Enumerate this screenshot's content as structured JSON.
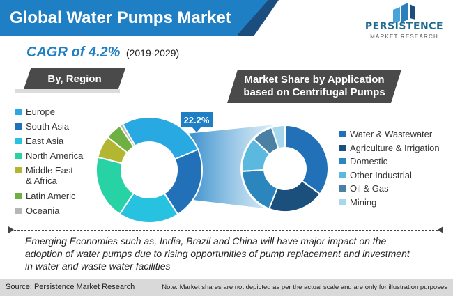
{
  "header": {
    "title": "Global Water Pumps Market",
    "cagr": "CAGR of 4.2%",
    "period": "(2019-2029)"
  },
  "logo": {
    "name": "PERSISTENCE",
    "tagline": "MARKET RESEARCH"
  },
  "colors": {
    "brand_blue": "#1f7fc4",
    "dark_blue": "#1b4d7e",
    "label_gray": "#4a4a4a"
  },
  "chart_data": [
    {
      "type": "pie",
      "donut": true,
      "title": "By, Region",
      "categories": [
        "Europe",
        "South Asia",
        "East Asia",
        "North America",
        "Middle East\n& Africa",
        "Latin Americ",
        "Oceania"
      ],
      "values": [
        27,
        22.2,
        18.5,
        19.5,
        6.8,
        5,
        1
      ],
      "colors": [
        "#29a9e1",
        "#2170b8",
        "#27c2e0",
        "#27d2a5",
        "#b3b631",
        "#6fb043",
        "#b7b7b7"
      ],
      "annotation": "22.2%",
      "legend": "left"
    },
    {
      "type": "pie",
      "donut": true,
      "title": "Market Share by Application\nbased on Centrifugal Pumps",
      "categories": [
        "Water & Wastewater",
        "Agriculture & Irrigation",
        "Domestic",
        "Other Industrial",
        "Oil & Gas",
        "Mining"
      ],
      "values": [
        35,
        21,
        18,
        13,
        8,
        5
      ],
      "colors": [
        "#2170b8",
        "#1b4f7c",
        "#2a86bd",
        "#5bb8de",
        "#4a80a4",
        "#a6d8ed"
      ],
      "legend": "right"
    }
  ],
  "description": "Emerging Economies such as, India, Brazil and China will have major impact on the adoption of water pumps due to rising opportunities of pump replacement and investment in water and waste water facilities",
  "footer": {
    "source": "Source: Persistence Market Research",
    "note": "Note: Market shares are not depicted as per the actual scale and are only for illustration purposes"
  }
}
